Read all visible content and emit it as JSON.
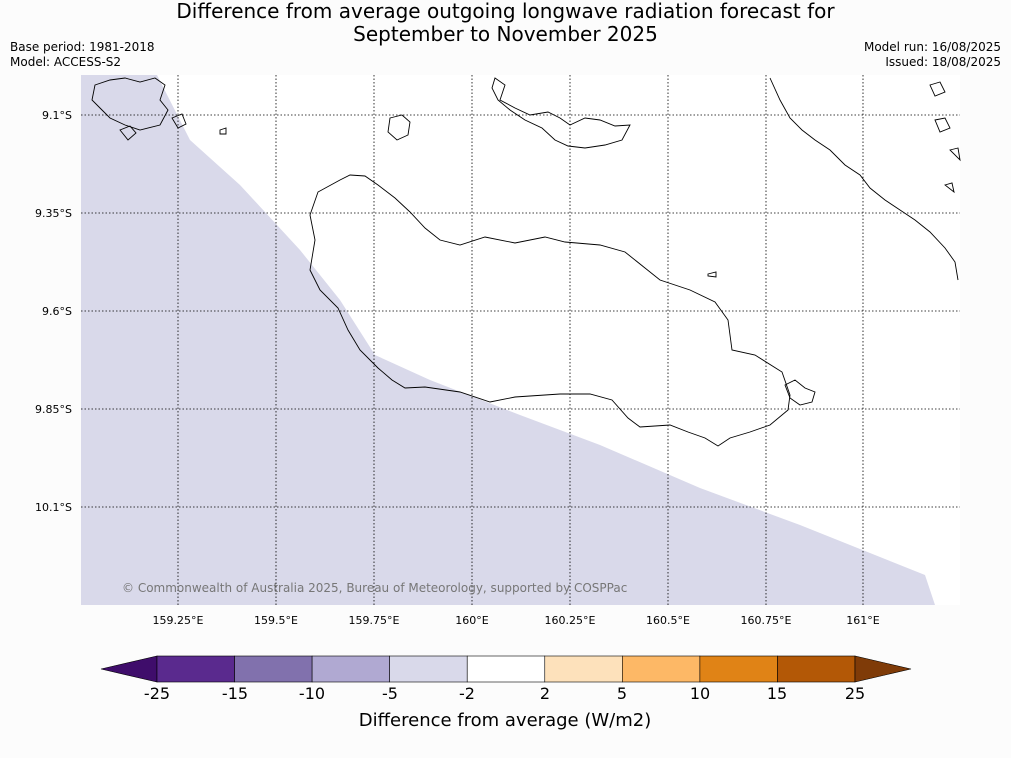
{
  "title_line1": "Difference from average outgoing longwave radiation forecast for",
  "title_line2": "September to November 2025",
  "base_period": "Base period: 1981-2018",
  "model": "Model: ACCESS-S2",
  "model_run": "Model run: 16/08/2025",
  "issued": "Issued: 18/08/2025",
  "copyright": "© Commonwealth of Australia 2025, Bureau of Meteorology, supported by COSPPac",
  "lat_labels": [
    "9.1°S",
    "9.35°S",
    "9.6°S",
    "9.85°S",
    "10.1°S"
  ],
  "lon_labels": [
    "159.25°E",
    "159.5°E",
    "159.75°E",
    "160°E",
    "160.25°E",
    "160.5°E",
    "160.75°E",
    "161°E"
  ],
  "colorbar": {
    "title": "Difference from average (W/m2)",
    "tick_labels": [
      "-25",
      "-15",
      "-10",
      "-5",
      "-2",
      "2",
      "5",
      "10",
      "15",
      "25"
    ],
    "colors": [
      "#3f0d6b",
      "#5a2a8e",
      "#8171ad",
      "#b0a9d2",
      "#d9d9ea",
      "#ffffff",
      "#fde1bb",
      "#fdb866",
      "#e08316",
      "#b35806",
      "#7f3b08"
    ]
  },
  "map_fill_color": "#d9d9ea"
}
